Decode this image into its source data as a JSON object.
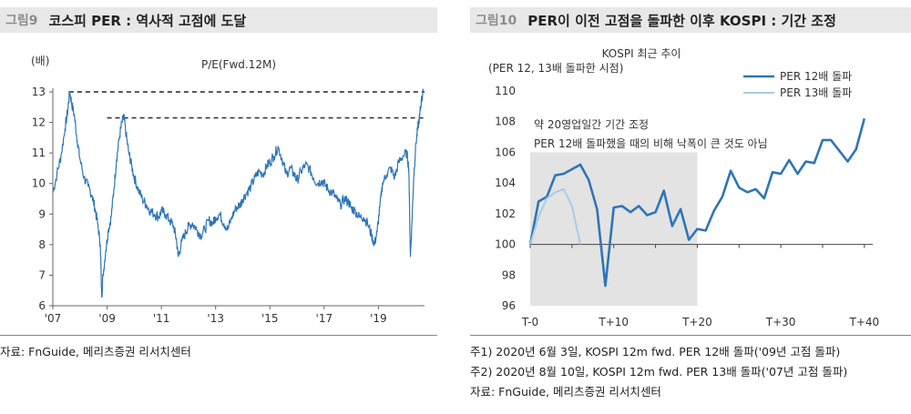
{
  "left": {
    "fig_no": "그림9",
    "title": "코스피 PER : 역사적 고점에 도달",
    "source": "자료: FnGuide, 메리츠증권 리서치센터",
    "chart_data": {
      "type": "line",
      "title": "P/E(Fwd.12M)",
      "ylabel": "(배)",
      "ylim": [
        6,
        13
      ],
      "y_ticks": [
        "6",
        "7",
        "8",
        "9",
        "10",
        "11",
        "12",
        "13"
      ],
      "x_ticks": [
        "'07",
        "'09",
        "'11",
        "'13",
        "'15",
        "'17",
        "'19"
      ],
      "x_tick_years": [
        2007,
        2009,
        2011,
        2013,
        2015,
        2017,
        2019
      ],
      "xlim": [
        2007.0,
        2020.7
      ],
      "series": [
        {
          "values": [
            [
              2007.0,
              9.7
            ],
            [
              2007.15,
              10.3
            ],
            [
              2007.3,
              10.9
            ],
            [
              2007.45,
              11.8
            ],
            [
              2007.55,
              12.4
            ],
            [
              2007.62,
              13.0
            ],
            [
              2007.7,
              12.6
            ],
            [
              2007.8,
              12.2
            ],
            [
              2007.9,
              11.4
            ],
            [
              2008.0,
              10.8
            ],
            [
              2008.15,
              10.2
            ],
            [
              2008.3,
              9.9
            ],
            [
              2008.45,
              9.6
            ],
            [
              2008.55,
              9.2
            ],
            [
              2008.65,
              8.7
            ],
            [
              2008.75,
              8.0
            ],
            [
              2008.8,
              6.3
            ],
            [
              2008.85,
              7.0
            ],
            [
              2008.95,
              7.8
            ],
            [
              2009.05,
              8.5
            ],
            [
              2009.15,
              8.9
            ],
            [
              2009.25,
              9.8
            ],
            [
              2009.35,
              10.8
            ],
            [
              2009.45,
              11.5
            ],
            [
              2009.55,
              12.0
            ],
            [
              2009.62,
              12.2
            ],
            [
              2009.7,
              11.6
            ],
            [
              2009.8,
              11.0
            ],
            [
              2009.9,
              10.6
            ],
            [
              2010.0,
              10.2
            ],
            [
              2010.15,
              9.8
            ],
            [
              2010.3,
              9.5
            ],
            [
              2010.45,
              9.3
            ],
            [
              2010.6,
              9.1
            ],
            [
              2010.75,
              9.0
            ],
            [
              2010.9,
              8.9
            ],
            [
              2011.0,
              9.1
            ],
            [
              2011.15,
              9.0
            ],
            [
              2011.3,
              8.8
            ],
            [
              2011.45,
              8.6
            ],
            [
              2011.55,
              8.2
            ],
            [
              2011.62,
              7.6
            ],
            [
              2011.75,
              8.1
            ],
            [
              2011.9,
              8.4
            ],
            [
              2012.0,
              8.6
            ],
            [
              2012.15,
              8.7
            ],
            [
              2012.3,
              8.5
            ],
            [
              2012.45,
              8.3
            ],
            [
              2012.6,
              8.5
            ],
            [
              2012.75,
              8.8
            ],
            [
              2012.9,
              8.7
            ],
            [
              2013.0,
              8.9
            ],
            [
              2013.15,
              9.0
            ],
            [
              2013.3,
              8.7
            ],
            [
              2013.45,
              8.5
            ],
            [
              2013.6,
              8.9
            ],
            [
              2013.75,
              9.2
            ],
            [
              2013.9,
              9.3
            ],
            [
              2014.0,
              9.5
            ],
            [
              2014.15,
              9.7
            ],
            [
              2014.3,
              9.9
            ],
            [
              2014.45,
              10.2
            ],
            [
              2014.6,
              10.4
            ],
            [
              2014.75,
              10.3
            ],
            [
              2014.9,
              10.6
            ],
            [
              2015.0,
              10.7
            ],
            [
              2015.15,
              10.9
            ],
            [
              2015.3,
              11.2
            ],
            [
              2015.45,
              10.8
            ],
            [
              2015.6,
              10.3
            ],
            [
              2015.75,
              10.5
            ],
            [
              2015.9,
              10.3
            ],
            [
              2016.0,
              10.1
            ],
            [
              2016.15,
              10.4
            ],
            [
              2016.3,
              10.6
            ],
            [
              2016.45,
              10.5
            ],
            [
              2016.6,
              10.2
            ],
            [
              2016.75,
              10.0
            ],
            [
              2016.9,
              10.1
            ],
            [
              2017.0,
              10.0
            ],
            [
              2017.15,
              9.8
            ],
            [
              2017.3,
              9.7
            ],
            [
              2017.45,
              9.5
            ],
            [
              2017.6,
              9.3
            ],
            [
              2017.75,
              9.5
            ],
            [
              2017.9,
              9.4
            ],
            [
              2018.0,
              9.2
            ],
            [
              2018.15,
              9.1
            ],
            [
              2018.3,
              8.9
            ],
            [
              2018.45,
              8.9
            ],
            [
              2018.6,
              8.7
            ],
            [
              2018.75,
              8.3
            ],
            [
              2018.85,
              8.0
            ],
            [
              2018.95,
              8.4
            ],
            [
              2019.05,
              9.2
            ],
            [
              2019.15,
              10.0
            ],
            [
              2019.3,
              10.3
            ],
            [
              2019.45,
              10.5
            ],
            [
              2019.6,
              10.2
            ],
            [
              2019.75,
              10.7
            ],
            [
              2019.9,
              10.9
            ],
            [
              2020.05,
              11.0
            ],
            [
              2020.12,
              10.5
            ],
            [
              2020.18,
              7.6
            ],
            [
              2020.24,
              8.8
            ],
            [
              2020.3,
              10.2
            ],
            [
              2020.38,
              11.3
            ],
            [
              2020.45,
              11.8
            ],
            [
              2020.52,
              12.2
            ],
            [
              2020.58,
              12.7
            ],
            [
              2020.65,
              13.0
            ]
          ]
        }
      ],
      "reference_lines": [
        {
          "y": 13.0,
          "x_start": 2007.6,
          "x_end": 2020.7,
          "style": "dashed"
        },
        {
          "y": 12.15,
          "x_start": 2009.0,
          "x_end": 2020.7,
          "style": "dashed"
        }
      ]
    }
  },
  "right": {
    "fig_no": "그림10",
    "title": "PER이 이전 고점을 돌파한 이후 KOSPI : 기간 조정",
    "notes": [
      "주1) 2020년 6월 3일, KOSPI 12m fwd. PER 12배 돌파('09년 고점 돌파)",
      "주2) 2020년 8월 10일, KOSPI 12m fwd. PER 13배 돌파('07년 고점 돌파)",
      "자료: FnGuide, 메리츠증권 리서치센터"
    ],
    "chart_data": {
      "type": "line",
      "title": "KOSPI 최근 추이",
      "ylabel": "(PER 12, 13배 돌파한 시점)",
      "ylim": [
        96,
        110
      ],
      "y_ticks": [
        "96",
        "98",
        "100",
        "102",
        "104",
        "106",
        "108",
        "110"
      ],
      "xlim": [
        0,
        41
      ],
      "x_ticks": [
        "T-0",
        "T+10",
        "T+20",
        "T+30",
        "T+40"
      ],
      "x_tick_positions": [
        0,
        10,
        20,
        30,
        40
      ],
      "baseline": 100,
      "shaded_region": {
        "x_start": 0,
        "x_end": 20
      },
      "annotation": [
        "약 20영업일간 기간 조정",
        "PER 12배 돌파했을 때의 비해 낙폭이 큰 것도 아님"
      ],
      "legend_position": "top-right",
      "series": [
        {
          "name": "PER 12배 돌파",
          "color": "#2e75b6",
          "x": [
            0,
            1,
            2,
            3,
            4,
            5,
            6,
            7,
            8,
            9,
            10,
            11,
            12,
            13,
            14,
            15,
            16,
            17,
            18,
            19,
            20,
            21,
            22,
            23,
            24,
            25,
            26,
            27,
            28,
            29,
            30,
            31,
            32,
            33,
            34,
            35,
            36,
            37,
            38,
            39,
            40
          ],
          "values": [
            100.0,
            102.8,
            103.1,
            104.5,
            104.6,
            104.9,
            105.2,
            104.2,
            102.3,
            97.3,
            102.4,
            102.5,
            102.1,
            102.5,
            101.9,
            102.1,
            103.5,
            101.2,
            102.3,
            100.3,
            101.0,
            100.9,
            102.2,
            103.1,
            104.8,
            103.7,
            103.4,
            103.6,
            103.0,
            104.7,
            104.6,
            105.5,
            104.6,
            105.4,
            105.3,
            106.8,
            106.8,
            106.1,
            105.4,
            106.2,
            108.2
          ]
        },
        {
          "name": "PER 13배 돌파",
          "color": "#a9cbe6",
          "x": [
            0,
            1,
            2,
            3,
            4,
            5,
            6
          ],
          "values": [
            100.0,
            101.8,
            103.0,
            103.4,
            103.6,
            102.5,
            100.0
          ]
        }
      ]
    }
  }
}
